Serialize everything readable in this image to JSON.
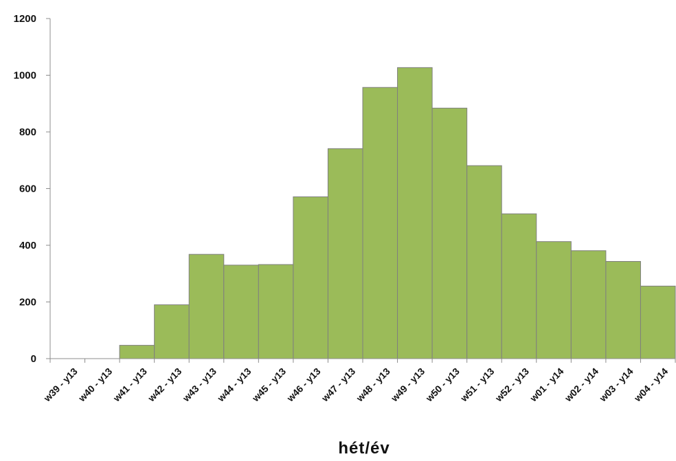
{
  "chart_data": {
    "type": "bar",
    "categories": [
      "w39 - y13",
      "w40 - y13",
      "w41 - y13",
      "w42 - y13",
      "w43 - y13",
      "w44 - y13",
      "w45 - y13",
      "w46 - y13",
      "w47 - y13",
      "w48 - y13",
      "w49 - y13",
      "w50 - y13",
      "w51 - y13",
      "w52 - y13",
      "w01 - y14",
      "w02 - y14",
      "w03 - y14",
      "w04 - y14"
    ],
    "values": [
      0,
      0,
      47,
      190,
      368,
      330,
      332,
      571,
      741,
      957,
      1027,
      884,
      681,
      511,
      413,
      381,
      343,
      256
    ],
    "title": "",
    "xlabel": "hét/év",
    "ylabel": "",
    "ylim": [
      0,
      1200
    ],
    "yticks": [
      0,
      200,
      400,
      600,
      800,
      1000,
      1200
    ],
    "grid": false,
    "legend": "none",
    "colors": {
      "bar_fill": "#9bbb59",
      "bar_stroke": "#7f7f7f",
      "axis": "#8c8c8c",
      "text": "#111111"
    }
  }
}
